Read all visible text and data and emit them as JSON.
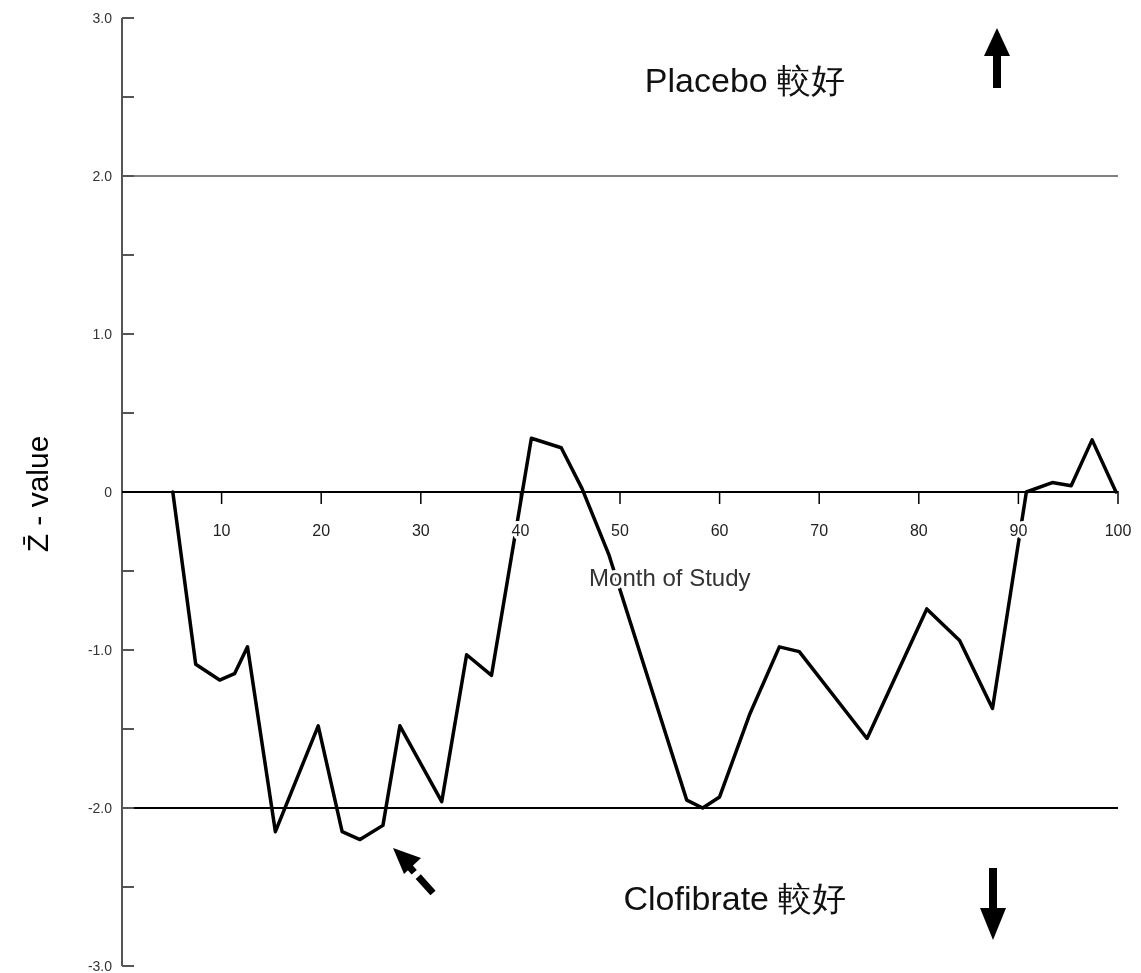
{
  "chart_data": {
    "type": "line",
    "xlabel": "Month of Study",
    "ylabel": "Z̄ - value",
    "annotations": [
      "Placebo 較好",
      "Clofibrate 較好"
    ],
    "series": [
      {
        "color": "#000000",
        "x": [
          5.1,
          7.4,
          9.8,
          11.3,
          12.6,
          15.4,
          19.7,
          22.1,
          23.9,
          26.2,
          27.9,
          32.1,
          34.6,
          37.1,
          41.1,
          44.1,
          46.2,
          48.9,
          56.7,
          58.3,
          60.0,
          63.0,
          66.0,
          68.0,
          74.8,
          80.8,
          84.1,
          87.4,
          90.8,
          93.4,
          95.3,
          97.4,
          99.8
        ],
        "values": [
          0,
          -1.09,
          -1.19,
          -1.15,
          -0.98,
          -2.15,
          -1.48,
          -2.15,
          -2.2,
          -2.11,
          -1.48,
          -1.96,
          -1.03,
          -1.16,
          0.34,
          0.28,
          0.02,
          -0.4,
          -1.95,
          -2.0,
          -1.93,
          -1.41,
          -0.98,
          -1.01,
          -1.56,
          -0.74,
          -0.94,
          -1.37,
          0,
          0.06,
          0.04,
          0.33,
          0
        ]
      }
    ],
    "xlim": [
      0,
      100
    ],
    "xticks": [
      10,
      20,
      30,
      40,
      50,
      60,
      70,
      80,
      90,
      100
    ],
    "ylim": [
      -3,
      3
    ],
    "yticks": [
      {
        "value": 3,
        "label": "3.0"
      },
      {
        "value": 2.5,
        "label": null
      },
      {
        "value": 2,
        "label": "2.0"
      },
      {
        "value": 1.5,
        "label": null
      },
      {
        "value": 1,
        "label": "1.0"
      },
      {
        "value": 0.5,
        "label": null
      },
      0,
      {
        "value": -0.5,
        "label": null
      },
      {
        "value": -1,
        "label": "-1.0"
      },
      {
        "value": -1.5,
        "label": null
      },
      {
        "value": -2,
        "label": "-2.0"
      },
      {
        "value": -2.5,
        "label": null
      },
      {
        "value": -3,
        "label": "-3.0"
      }
    ],
    "ref_lines": [
      {
        "axis": "y",
        "value": 2,
        "color": "#808080"
      },
      {
        "axis": "y",
        "value": -2,
        "color": "#000000"
      }
    ],
    "marker": "none",
    "line_style": "solid"
  }
}
